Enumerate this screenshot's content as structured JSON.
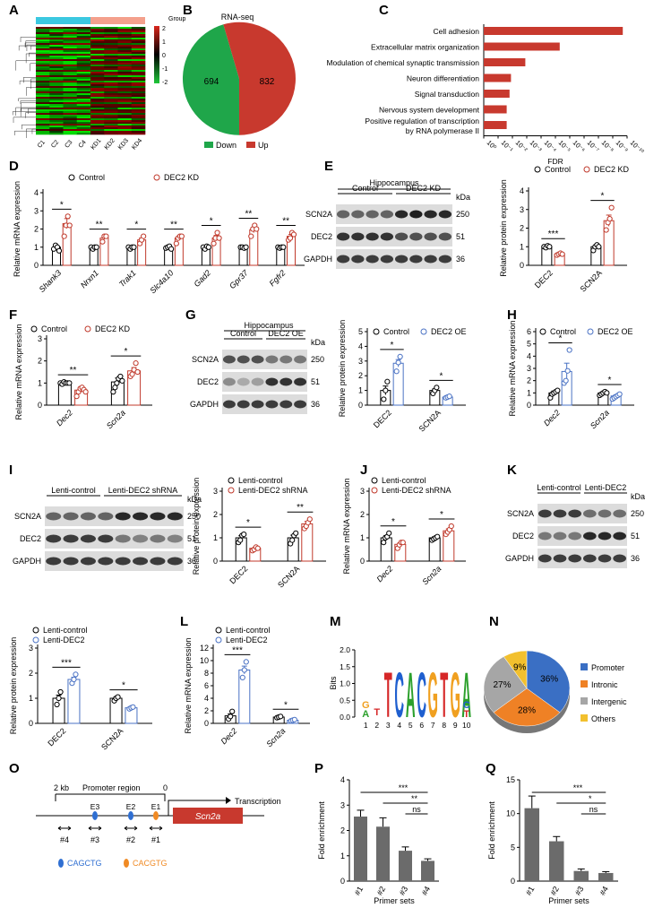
{
  "colors": {
    "control": "#000000",
    "kd": "#c0392b",
    "oe": "#4a72c4",
    "pos": "#d9261c",
    "neg": "#1fa64a",
    "bar_red": "#c8392e",
    "bar_gray": "#6b6b6b",
    "prom": "#3a6fc4",
    "intron": "#ef8125",
    "interg": "#a6a6a6",
    "other": "#f2c02e",
    "blue_motif": "#2f6fd2",
    "orange_motif": "#f08a24"
  },
  "panels": {
    "A": "A",
    "B": "B",
    "C": "C",
    "D": "D",
    "E": "E",
    "F": "F",
    "G": "G",
    "H": "H",
    "I": "I",
    "J": "J",
    "K": "K",
    "L": "L",
    "M": "M",
    "N": "N",
    "O": "O",
    "P": "P",
    "Q": "Q"
  },
  "heatmap": {
    "legend_title": "Group",
    "scale": [
      "2",
      "1",
      "0",
      "-1",
      "-2"
    ],
    "samples": [
      "C1",
      "C2",
      "C3",
      "C4",
      "KD1",
      "KD2",
      "KD3",
      "KD4"
    ]
  },
  "pie_b": {
    "title": "RNA-seq",
    "down": 694,
    "up": 832,
    "legend": [
      "Down",
      "Up"
    ]
  },
  "bar_c": {
    "xlabel": "FDR",
    "terms": [
      "Cell adhesion",
      "Extracellular matrix organization",
      "Modulation of chemical synaptic transmission",
      "Neuron differentiation",
      "Signal transduction",
      "Nervous system development",
      "Positive regulation of transcription",
      "by RNA polymerase II"
    ],
    "ticks": [
      "10⁰",
      "10⁻¹",
      "10⁻²",
      "10⁻³",
      "10⁻⁴",
      "10⁻⁵",
      "10⁻⁶",
      "10⁻⁷",
      "10⁻⁸",
      "10⁻⁹",
      "10⁻¹⁰"
    ]
  },
  "labels": {
    "control": "Control",
    "dec2kd": "DEC2 KD",
    "dec2oe": "DEC2 OE",
    "lenti_ctrl": "Lenti-control",
    "lenti_sh": "Lenti-DEC2 shRNA",
    "lenti_dec2": "Lenti-DEC2",
    "hippocampus": "Hippocampus",
    "kda": "kDa",
    "rel_mrna": "Relative mRNA expression",
    "rel_prot": "Relative protein expression",
    "fold": "Fold enrichment",
    "primer": "Primer sets",
    "bits": "Bits"
  },
  "blots": {
    "scn2a": "SCN2A",
    "dec2": "DEC2",
    "gapdh": "GAPDH",
    "kd250": "250",
    "kd51": "51",
    "kd36": "36"
  },
  "chart_data": [
    {
      "panel": "C",
      "type": "bar",
      "xlabel": "FDR",
      "xscale": "log",
      "categories": [
        "Cell adhesion",
        "Extracellular matrix organization",
        "Modulation of chemical synaptic transmission",
        "Neuron differentiation",
        "Signal transduction",
        "Nervous system development",
        "Positive regulation of transcription by RNA polymerase II"
      ],
      "values_neglog10": [
        9.7,
        5.3,
        2.9,
        1.9,
        1.8,
        1.6,
        1.6
      ]
    },
    {
      "panel": "D",
      "type": "bar",
      "ylabel": "Relative mRNA expression",
      "ylim": [
        0,
        4
      ],
      "categories": [
        "Shank3",
        "Nrxn1",
        "Trak1",
        "Slc4a10",
        "Gad2",
        "Gpr37",
        "Fgfr2"
      ],
      "series": [
        {
          "name": "Control",
          "values": [
            1.0,
            1.0,
            1.0,
            1.0,
            1.0,
            1.0,
            1.0
          ],
          "pts": [
            [
              0.9,
              1.1,
              1.0,
              0.8
            ],
            [
              1.0,
              0.9,
              1.0,
              1.0
            ],
            [
              1.0,
              0.9,
              1.0,
              1.0
            ],
            [
              0.95,
              1.0,
              1.05,
              0.9
            ],
            [
              1.0,
              0.9,
              1.05,
              1.0
            ],
            [
              1.0,
              1.0,
              0.95,
              1.0
            ],
            [
              1.0,
              0.95,
              1.0,
              1.0
            ]
          ]
        },
        {
          "name": "DEC2 KD",
          "values": [
            2.3,
            1.5,
            1.4,
            1.5,
            1.5,
            1.95,
            1.6
          ],
          "pts": [
            [
              1.6,
              2.2,
              2.7,
              2.2
            ],
            [
              1.3,
              1.6,
              1.6
            ],
            [
              1.2,
              1.4,
              1.6
            ],
            [
              1.2,
              1.5,
              1.6,
              1.6
            ],
            [
              1.2,
              1.5,
              1.8,
              1.5
            ],
            [
              1.6,
              2.0,
              2.2,
              2.0
            ],
            [
              1.4,
              1.5,
              1.8,
              1.7
            ]
          ]
        }
      ],
      "sig": [
        "*",
        "**",
        "*",
        "**",
        "*",
        "**",
        "**"
      ]
    },
    {
      "panel": "E",
      "type": "bar",
      "ylabel": "Relative protein expression",
      "ylim": [
        0,
        4
      ],
      "categories": [
        "DEC2",
        "SCN2A"
      ],
      "series": [
        {
          "name": "Control",
          "values": [
            1.0,
            1.0
          ],
          "pts": [
            [
              1.0,
              0.95,
              1.05,
              1.0
            ],
            [
              0.8,
              1.0,
              1.1,
              1.0
            ]
          ]
        },
        {
          "name": "DEC2 KD",
          "values": [
            0.6,
            2.4
          ],
          "pts": [
            [
              0.55,
              0.6,
              0.65,
              0.6
            ],
            [
              1.9,
              2.3,
              2.5,
              3.1
            ]
          ]
        }
      ],
      "sig": [
        "***",
        "*"
      ]
    },
    {
      "panel": "F",
      "type": "bar",
      "ylabel": "Relative mRNA expression",
      "ylim": [
        0,
        3
      ],
      "categories": [
        "Dec2",
        "Scn2a"
      ],
      "series": [
        {
          "name": "Control",
          "values": [
            1.0,
            1.05
          ],
          "pts": [
            [
              1.0,
              0.95,
              1.05,
              1.0,
              1.0,
              1.0
            ],
            [
              0.6,
              0.8,
              1.0,
              1.2,
              1.3,
              1.1
            ]
          ]
        },
        {
          "name": "DEC2 KD",
          "values": [
            0.68,
            1.55
          ],
          "pts": [
            [
              0.4,
              0.6,
              0.75,
              0.8,
              0.7,
              0.6
            ],
            [
              1.3,
              1.4,
              1.6,
              1.9,
              1.5
            ]
          ]
        }
      ],
      "sig": [
        "**",
        "*"
      ]
    },
    {
      "panel": "G",
      "type": "bar",
      "ylabel": "Relative protein expression",
      "ylim": [
        0,
        5
      ],
      "categories": [
        "DEC2",
        "SCN2A"
      ],
      "series": [
        {
          "name": "Control",
          "values": [
            1.0,
            1.0
          ],
          "pts": [
            [
              0.4,
              1.0,
              1.6
            ],
            [
              0.8,
              1.0,
              1.2
            ]
          ]
        },
        {
          "name": "DEC2 OE",
          "values": [
            2.85,
            0.55
          ],
          "pts": [
            [
              2.3,
              2.9,
              3.3
            ],
            [
              0.5,
              0.55,
              0.6
            ]
          ]
        }
      ],
      "sig": [
        "*",
        "*"
      ]
    },
    {
      "panel": "H",
      "type": "bar",
      "ylabel": "Relative mRNA expression",
      "ylim": [
        0,
        6
      ],
      "categories": [
        "Dec2",
        "Scn2a"
      ],
      "series": [
        {
          "name": "Control",
          "values": [
            1.0,
            1.0
          ],
          "pts": [
            [
              0.6,
              0.9,
              1.0,
              1.1,
              1.2
            ],
            [
              0.8,
              0.9,
              1.0,
              1.1,
              1.0
            ]
          ]
        },
        {
          "name": "DEC2 OE",
          "values": [
            2.75,
            0.75
          ],
          "pts": [
            [
              1.8,
              2.0,
              2.8,
              4.5
            ],
            [
              0.5,
              0.6,
              0.7,
              0.8,
              0.9
            ]
          ]
        }
      ],
      "sig": [
        "*",
        "*"
      ]
    },
    {
      "panel": "I",
      "type": "bar",
      "ylabel": "Relative protein expression",
      "ylim": [
        0,
        3
      ],
      "categories": [
        "DEC2",
        "SCN2A"
      ],
      "series": [
        {
          "name": "Lenti-control",
          "values": [
            1.0,
            1.0
          ],
          "pts": [
            [
              0.8,
              0.9,
              1.1,
              1.15
            ],
            [
              0.75,
              0.9,
              1.1,
              1.2
            ]
          ]
        },
        {
          "name": "Lenti-DEC2 shRNA",
          "values": [
            0.55,
            1.6
          ],
          "pts": [
            [
              0.45,
              0.5,
              0.6,
              0.55
            ],
            [
              1.4,
              1.5,
              1.65,
              1.8
            ]
          ]
        }
      ],
      "sig": [
        "*",
        "**"
      ]
    },
    {
      "panel": "J",
      "type": "bar",
      "ylabel": "Relative mRNA expression",
      "ylim": [
        0,
        3
      ],
      "categories": [
        "Dec2",
        "Scn2a"
      ],
      "series": [
        {
          "name": "Lenti-control",
          "values": [
            1.0,
            1.0
          ],
          "pts": [
            [
              0.8,
              1.0,
              1.05,
              1.2
            ],
            [
              0.9,
              0.95,
              1.0,
              1.05
            ]
          ]
        },
        {
          "name": "Lenti-DEC2 shRNA",
          "values": [
            0.72,
            1.3
          ],
          "pts": [
            [
              0.55,
              0.7,
              0.8,
              0.8
            ],
            [
              1.15,
              1.25,
              1.35,
              1.5
            ]
          ]
        }
      ],
      "sig": [
        "*",
        "*"
      ]
    },
    {
      "panel": "K",
      "type": "bar",
      "ylabel": "Relative protein expression",
      "ylim": [
        0,
        3
      ],
      "categories": [
        "DEC2",
        "SCN2A"
      ],
      "series": [
        {
          "name": "Lenti-control",
          "values": [
            1.0,
            1.0
          ],
          "pts": [
            [
              0.75,
              1.0,
              1.25
            ],
            [
              0.9,
              1.0,
              1.05
            ]
          ]
        },
        {
          "name": "Lenti-DEC2",
          "values": [
            1.75,
            0.62
          ],
          "pts": [
            [
              1.6,
              1.75,
              1.95
            ],
            [
              0.58,
              0.62,
              0.65
            ]
          ]
        }
      ],
      "sig": [
        "***",
        "*"
      ]
    },
    {
      "panel": "L",
      "type": "bar",
      "ylabel": "Relative mRNA expression",
      "ylim": [
        0,
        12
      ],
      "categories": [
        "Dec2",
        "Scn2a"
      ],
      "series": [
        {
          "name": "Lenti-control",
          "values": [
            1.2,
            1.0
          ],
          "pts": [
            [
              0.7,
              1.1,
              1.9
            ],
            [
              0.9,
              1.0,
              1.1
            ]
          ]
        },
        {
          "name": "Lenti-DEC2",
          "values": [
            8.5,
            0.5
          ],
          "pts": [
            [
              7.3,
              8.5,
              9.8
            ],
            [
              0.4,
              0.5,
              0.6
            ]
          ]
        }
      ],
      "sig": [
        "***",
        "*"
      ]
    },
    {
      "panel": "N",
      "type": "pie",
      "categories": [
        "Promoter",
        "Intronic",
        "Intergenic",
        "Others"
      ],
      "values": [
        36,
        28,
        27,
        9
      ]
    },
    {
      "panel": "P",
      "type": "bar",
      "ylabel": "Fold enrichment",
      "xlabel": "Primer sets",
      "ylim": [
        0,
        4
      ],
      "categories": [
        "#1",
        "#2",
        "#3",
        "#4"
      ],
      "values": [
        2.55,
        2.15,
        1.2,
        0.8
      ],
      "errors": [
        0.25,
        0.35,
        0.15,
        0.08
      ],
      "sig": [
        "***",
        "**",
        "ns"
      ]
    },
    {
      "panel": "Q",
      "type": "bar",
      "ylabel": "Fold enrichment",
      "xlabel": "Primer sets",
      "ylim": [
        0,
        15
      ],
      "categories": [
        "#1",
        "#2",
        "#3",
        "#4"
      ],
      "values": [
        10.8,
        5.9,
        1.5,
        1.2
      ],
      "errors": [
        1.8,
        0.7,
        0.3,
        0.2
      ],
      "sig": [
        "***",
        "*",
        "ns"
      ]
    }
  ],
  "pie_n": {
    "pcts": [
      "36%",
      "28%",
      "27%",
      "9%"
    ]
  },
  "motif": {
    "letters": [
      "G",
      "A",
      "T",
      "C",
      "A",
      "C",
      "G",
      "T",
      "G",
      "A",
      "C",
      "T"
    ],
    "positions": [
      "1",
      "2",
      "3",
      "4",
      "5",
      "6",
      "7",
      "8",
      "9",
      "10"
    ],
    "yticks": [
      "0.0",
      "0.5",
      "1.0",
      "1.5",
      "2.0"
    ]
  },
  "schematic": {
    "kb": "2 kb",
    "promoter": "Promoter region",
    "zero": "0",
    "transcription": "Transcription",
    "gene": "Scn2a",
    "e3": "E3",
    "e2": "E2",
    "e1": "E1",
    "p4": "#4",
    "p3": "#3",
    "p2": "#2",
    "p1": "#1",
    "motif_blue": "CAGCTG",
    "motif_orange": "CACGTG"
  }
}
